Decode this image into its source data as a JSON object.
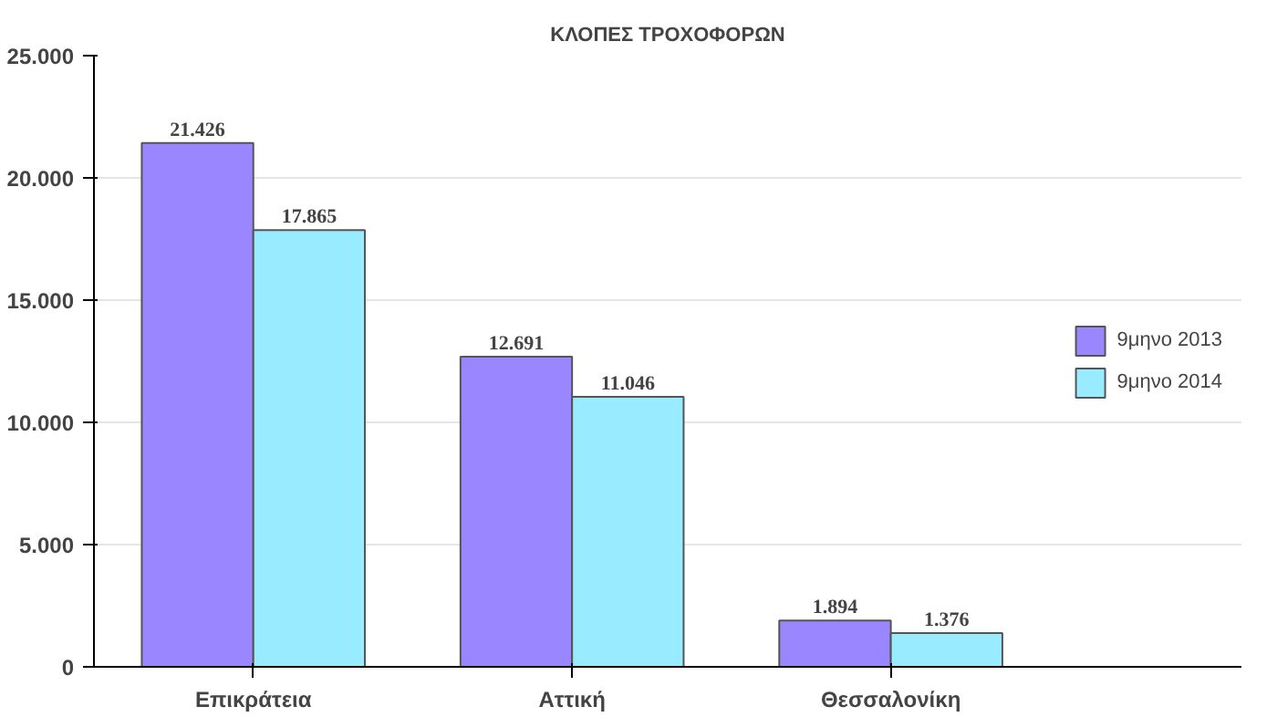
{
  "chart_data": {
    "type": "bar",
    "title": "ΚΛΟΠΕΣ ΤΡΟΧΟΦΟΡΩΝ",
    "categories": [
      "Επικράτεια",
      "Αττική",
      "Θεσσαλονίκη"
    ],
    "series": [
      {
        "name": "9μηνο 2013",
        "color": "#9a86ff",
        "values": [
          21426,
          12691,
          1894
        ],
        "value_labels": [
          "21.426",
          "12.691",
          "1.894"
        ]
      },
      {
        "name": "9μηνο 2014",
        "color": "#99ecff",
        "values": [
          17865,
          11046,
          1376
        ],
        "value_labels": [
          "17.865",
          "11.046",
          "1.376"
        ]
      }
    ],
    "ylim": [
      0,
      25000
    ],
    "yticks": [
      {
        "value": 0,
        "label": "0"
      },
      {
        "value": 5000,
        "label": "5.000"
      },
      {
        "value": 10000,
        "label": "10.000"
      },
      {
        "value": 15000,
        "label": "15.000"
      },
      {
        "value": 20000,
        "label": "20.000"
      },
      {
        "value": 25000,
        "label": "25.000"
      }
    ],
    "grid": "y",
    "legend": "right"
  }
}
